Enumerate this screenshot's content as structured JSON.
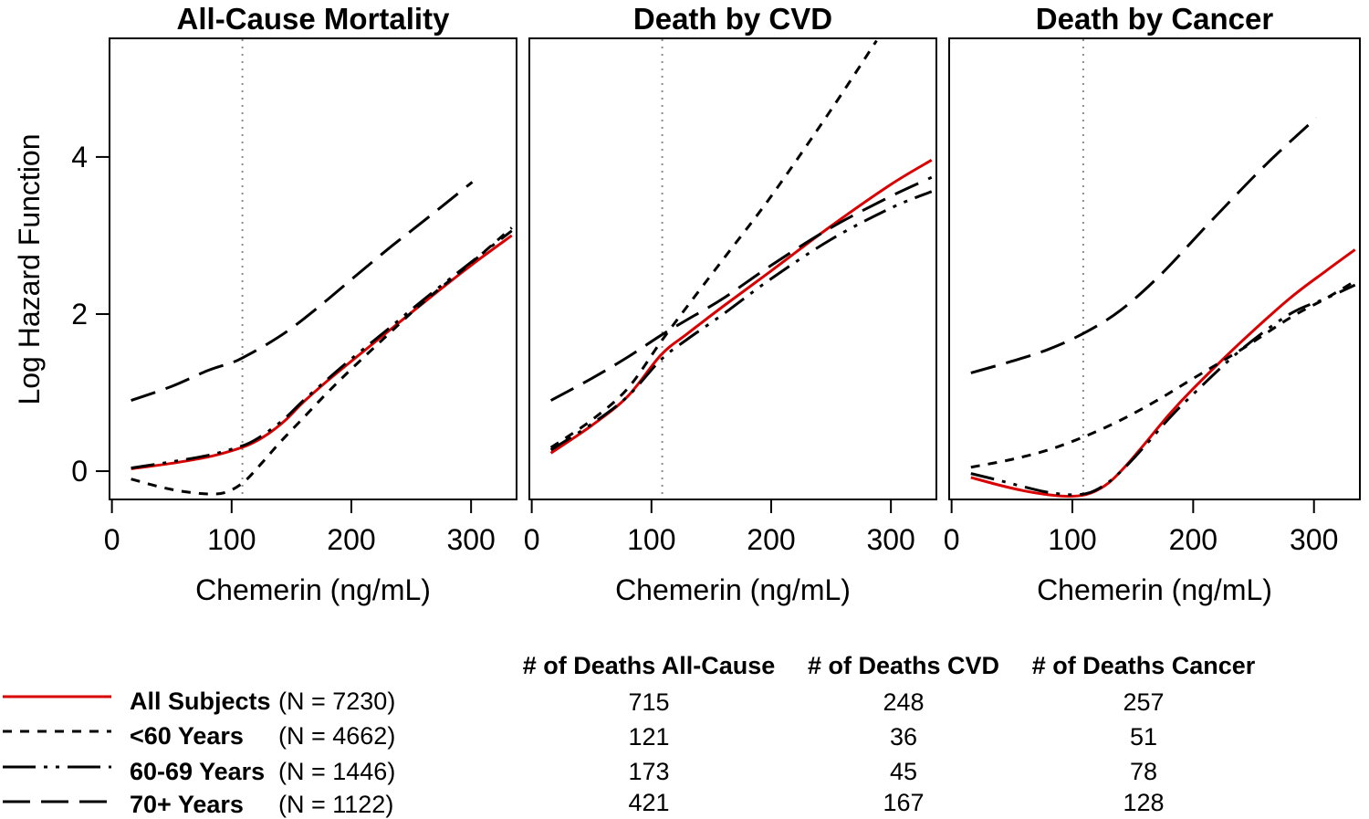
{
  "figure": {
    "ylabel": "Log Hazard Function",
    "xlabel": "Chemerin (ng/mL)",
    "colors": {
      "all_subjects_line": "#D80000",
      "black_line": "#000000",
      "reference_line": "#8C8C8C"
    }
  },
  "chart_data": [
    {
      "type": "line",
      "title": "All-Cause Mortality",
      "xlabel": "Chemerin (ng/mL)",
      "ylabel": "Log Hazard Function",
      "xlim": [
        -2,
        338
      ],
      "ylim": [
        -0.36,
        5.51
      ],
      "x_ticks": [
        0,
        100,
        200,
        300
      ],
      "y_ticks": [
        0,
        2,
        4
      ],
      "reference_line_x": 109,
      "grid": false,
      "series": [
        {
          "name": "All Subjects",
          "id": "all-subjects",
          "color": "#D80000",
          "dash": "",
          "points": [
            [
              16,
              0.03
            ],
            [
              50,
              0.1
            ],
            [
              80,
              0.18
            ],
            [
              100,
              0.26
            ],
            [
              115,
              0.34
            ],
            [
              130,
              0.47
            ],
            [
              145,
              0.65
            ],
            [
              160,
              0.88
            ],
            [
              180,
              1.15
            ],
            [
              200,
              1.4
            ],
            [
              230,
              1.77
            ],
            [
              260,
              2.14
            ],
            [
              300,
              2.62
            ],
            [
              334,
              3.0
            ]
          ]
        },
        {
          "name": "<60 Years",
          "id": "under-60-years",
          "color": "#000000",
          "dash": "10 9",
          "points": [
            [
              16,
              -0.1
            ],
            [
              40,
              -0.2
            ],
            [
              60,
              -0.26
            ],
            [
              80,
              -0.29
            ],
            [
              95,
              -0.27
            ],
            [
              110,
              -0.14
            ],
            [
              125,
              0.1
            ],
            [
              140,
              0.36
            ],
            [
              160,
              0.68
            ],
            [
              180,
              1.0
            ],
            [
              200,
              1.3
            ],
            [
              230,
              1.73
            ],
            [
              260,
              2.15
            ],
            [
              300,
              2.65
            ],
            [
              334,
              3.1
            ]
          ]
        },
        {
          "name": "60-69 Years",
          "id": "60-69-years",
          "color": "#000000",
          "dash": "26 9 4 9 4 9",
          "points": [
            [
              16,
              0.04
            ],
            [
              50,
              0.12
            ],
            [
              80,
              0.2
            ],
            [
              100,
              0.28
            ],
            [
              115,
              0.36
            ],
            [
              130,
              0.5
            ],
            [
              145,
              0.68
            ],
            [
              160,
              0.9
            ],
            [
              180,
              1.17
            ],
            [
              200,
              1.43
            ],
            [
              230,
              1.8
            ],
            [
              260,
              2.18
            ],
            [
              300,
              2.66
            ],
            [
              334,
              3.06
            ]
          ]
        },
        {
          "name": "70+ Years",
          "id": "70-plus-years",
          "color": "#000000",
          "dash": "28 12",
          "points": [
            [
              16,
              0.9
            ],
            [
              50,
              1.08
            ],
            [
              80,
              1.28
            ],
            [
              100,
              1.38
            ],
            [
              110,
              1.45
            ],
            [
              130,
              1.62
            ],
            [
              150,
              1.82
            ],
            [
              175,
              2.12
            ],
            [
              200,
              2.44
            ],
            [
              230,
              2.82
            ],
            [
              260,
              3.18
            ],
            [
              301,
              3.68
            ]
          ]
        }
      ]
    },
    {
      "type": "line",
      "title": "Death by CVD",
      "xlabel": "Chemerin (ng/mL)",
      "ylabel": "Log Hazard Function",
      "xlim": [
        -2,
        338
      ],
      "ylim": [
        -0.36,
        5.51
      ],
      "x_ticks": [
        0,
        100,
        200,
        300
      ],
      "y_ticks": [
        0,
        2,
        4
      ],
      "reference_line_x": 109,
      "grid": false,
      "series": [
        {
          "name": "All Subjects",
          "id": "all-subjects",
          "color": "#D80000",
          "dash": "",
          "points": [
            [
              16,
              0.23
            ],
            [
              50,
              0.58
            ],
            [
              80,
              0.95
            ],
            [
              108,
              1.48
            ],
            [
              130,
              1.75
            ],
            [
              160,
              2.1
            ],
            [
              200,
              2.55
            ],
            [
              250,
              3.12
            ],
            [
              300,
              3.65
            ],
            [
              334,
              3.96
            ]
          ]
        },
        {
          "name": "<60 Years",
          "id": "under-60-years",
          "color": "#000000",
          "dash": "10 9",
          "points": [
            [
              16,
              0.3
            ],
            [
              50,
              0.65
            ],
            [
              80,
              1.05
            ],
            [
              108,
              1.65
            ],
            [
              130,
              2.1
            ],
            [
              160,
              2.7
            ],
            [
              200,
              3.5
            ],
            [
              250,
              4.6
            ],
            [
              288,
              5.48
            ]
          ]
        },
        {
          "name": "60-69 Years",
          "id": "60-69-years",
          "color": "#000000",
          "dash": "26 9 4 9 4 9",
          "points": [
            [
              16,
              0.27
            ],
            [
              50,
              0.6
            ],
            [
              80,
              0.95
            ],
            [
              108,
              1.42
            ],
            [
              130,
              1.68
            ],
            [
              160,
              2.0
            ],
            [
              200,
              2.45
            ],
            [
              250,
              2.95
            ],
            [
              300,
              3.35
            ],
            [
              334,
              3.56
            ]
          ]
        },
        {
          "name": "70+ Years",
          "id": "70-plus-years",
          "color": "#000000",
          "dash": "28 12",
          "points": [
            [
              16,
              0.9
            ],
            [
              50,
              1.18
            ],
            [
              80,
              1.45
            ],
            [
              108,
              1.73
            ],
            [
              130,
              1.93
            ],
            [
              160,
              2.2
            ],
            [
              200,
              2.62
            ],
            [
              250,
              3.1
            ],
            [
              300,
              3.5
            ],
            [
              334,
              3.74
            ]
          ]
        }
      ]
    },
    {
      "type": "line",
      "title": "Death by Cancer",
      "xlabel": "Chemerin (ng/mL)",
      "ylabel": "Log Hazard Function",
      "xlim": [
        -2,
        338
      ],
      "ylim": [
        -0.36,
        5.51
      ],
      "x_ticks": [
        0,
        100,
        200,
        300
      ],
      "y_ticks": [
        0,
        2,
        4
      ],
      "reference_line_x": 109,
      "grid": false,
      "series": [
        {
          "name": "All Subjects",
          "id": "all-subjects",
          "color": "#D80000",
          "dash": "",
          "points": [
            [
              16,
              -0.08
            ],
            [
              40,
              -0.18
            ],
            [
              60,
              -0.25
            ],
            [
              80,
              -0.3
            ],
            [
              100,
              -0.32
            ],
            [
              115,
              -0.28
            ],
            [
              130,
              -0.15
            ],
            [
              145,
              0.08
            ],
            [
              160,
              0.35
            ],
            [
              180,
              0.72
            ],
            [
              200,
              1.05
            ],
            [
              240,
              1.65
            ],
            [
              280,
              2.2
            ],
            [
              310,
              2.55
            ],
            [
              334,
              2.82
            ]
          ]
        },
        {
          "name": "<60 Years",
          "id": "under-60-years",
          "color": "#000000",
          "dash": "10 9",
          "points": [
            [
              16,
              0.05
            ],
            [
              50,
              0.15
            ],
            [
              80,
              0.27
            ],
            [
              110,
              0.44
            ],
            [
              140,
              0.65
            ],
            [
              170,
              0.9
            ],
            [
              200,
              1.18
            ],
            [
              240,
              1.55
            ],
            [
              280,
              1.95
            ],
            [
              310,
              2.2
            ],
            [
              334,
              2.42
            ]
          ]
        },
        {
          "name": "60-69 Years",
          "id": "60-69-years",
          "color": "#000000",
          "dash": "26 9 4 9 4 9",
          "points": [
            [
              16,
              -0.03
            ],
            [
              40,
              -0.12
            ],
            [
              60,
              -0.2
            ],
            [
              80,
              -0.27
            ],
            [
              100,
              -0.3
            ],
            [
              115,
              -0.27
            ],
            [
              130,
              -0.14
            ],
            [
              145,
              0.07
            ],
            [
              160,
              0.32
            ],
            [
              180,
              0.67
            ],
            [
              200,
              0.98
            ],
            [
              240,
              1.55
            ],
            [
              280,
              2.0
            ],
            [
              310,
              2.2
            ],
            [
              334,
              2.37
            ]
          ]
        },
        {
          "name": "70+ Years",
          "id": "70-plus-years",
          "color": "#000000",
          "dash": "28 12",
          "points": [
            [
              16,
              1.25
            ],
            [
              50,
              1.4
            ],
            [
              80,
              1.55
            ],
            [
              110,
              1.76
            ],
            [
              140,
              2.05
            ],
            [
              173,
              2.5
            ],
            [
              214,
              3.17
            ],
            [
              260,
              3.9
            ],
            [
              302,
              4.5
            ]
          ]
        }
      ]
    }
  ],
  "legend": {
    "items": [
      {
        "label": "All Subjects",
        "n": "(N = 7230)",
        "color": "#D80000",
        "dash": ""
      },
      {
        "label": "<60 Years",
        "n": "(N = 4662)",
        "color": "#000000",
        "dash": "10 9"
      },
      {
        "label": "60-69 Years",
        "n": "(N = 1446)",
        "color": "#000000",
        "dash": "36 9 4 9 4 9"
      },
      {
        "label": "70+ Years",
        "n": "(N = 1122)",
        "color": "#000000",
        "dash": "30 12"
      }
    ]
  },
  "table": {
    "headers": [
      "# of Deaths All-Cause",
      "# of Deaths CVD",
      "# of Deaths Cancer"
    ],
    "rows": [
      [
        "715",
        "248",
        "257"
      ],
      [
        "121",
        "36",
        "51"
      ],
      [
        "173",
        "45",
        "78"
      ],
      [
        "421",
        "167",
        "128"
      ]
    ]
  }
}
